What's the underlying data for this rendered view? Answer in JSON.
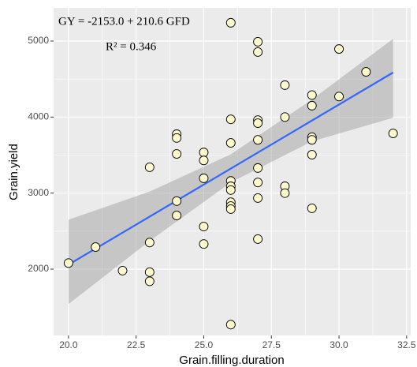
{
  "chart_data": {
    "type": "scatter",
    "x_label": "Grain.filling.duration",
    "y_label": "Grain.yield",
    "annotations": [
      "GY = -2153.0 + 210.6 GFD",
      "R² = 0.346"
    ],
    "xlim": [
      19.45,
      32.65
    ],
    "ylim": [
      1128,
      5436
    ],
    "xticks": [
      {
        "value": 20,
        "label": "20.0"
      },
      22.5,
      {
        "value": 25,
        "label": "25.0"
      },
      27.5,
      {
        "value": 30,
        "label": "30.0"
      },
      32.5
    ],
    "yticks": [
      2000,
      3000,
      4000,
      5000
    ],
    "grid": true,
    "series": [
      {
        "color": "#fffacd",
        "x": [
          20,
          21,
          22,
          23,
          23,
          23,
          23,
          24,
          24,
          24,
          24,
          24,
          25,
          25,
          25,
          25,
          25,
          26,
          26,
          26,
          26,
          26,
          26,
          26,
          26,
          26,
          26,
          27,
          27,
          27,
          27,
          27,
          27,
          27,
          27,
          27,
          28,
          28,
          28,
          28,
          29,
          29,
          29,
          29,
          29,
          29,
          30,
          30,
          31,
          32
        ],
        "values": [
          2080,
          2290,
          1980,
          3340,
          2350,
          1960,
          1840,
          3775,
          3725,
          3515,
          2895,
          2705,
          3535,
          3430,
          3195,
          2560,
          2330,
          5240,
          3970,
          3660,
          3160,
          3090,
          3040,
          2880,
          2830,
          2790,
          1270,
          4990,
          4855,
          3960,
          3920,
          3700,
          3330,
          3140,
          2935,
          2395,
          4420,
          4000,
          3090,
          3000,
          4290,
          4150,
          3735,
          3700,
          3505,
          2800,
          4895,
          4270,
          4595,
          3785
        ]
      }
    ],
    "fit": {
      "color": "#3366ff",
      "x": [
        20,
        32
      ],
      "values": [
        2059,
        4586
      ]
    },
    "band": {
      "color": "#999999",
      "x": [
        20,
        23,
        26,
        29,
        32
      ],
      "upper": [
        2650,
        3020,
        3510,
        4230,
        5030
      ],
      "lower": [
        1540,
        2370,
        3140,
        3680,
        3990
      ]
    }
  }
}
